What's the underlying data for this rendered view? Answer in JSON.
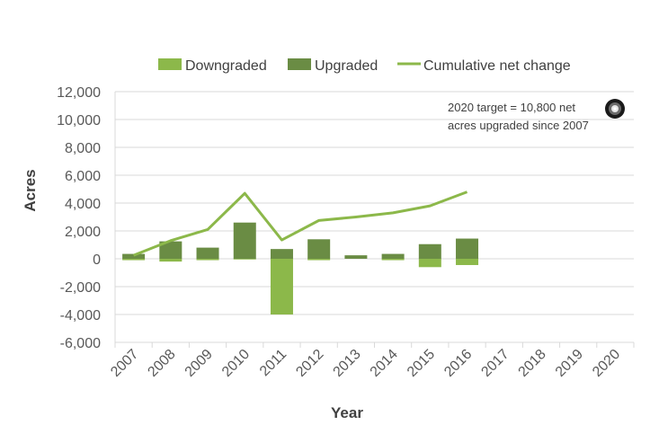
{
  "chart_data": {
    "type": "bar",
    "categories": [
      "2007",
      "2008",
      "2009",
      "2010",
      "2011",
      "2012",
      "2013",
      "2014",
      "2015",
      "2016",
      "2017",
      "2018",
      "2019",
      "2020"
    ],
    "series": [
      {
        "name": "Downgraded",
        "kind": "bar",
        "color": "#8cb84a",
        "values": [
          -100,
          -200,
          -100,
          -50,
          -4000,
          -100,
          0,
          -100,
          -600,
          -450,
          null,
          null,
          null,
          null
        ]
      },
      {
        "name": "Upgraded",
        "kind": "bar",
        "color": "#6a8c44",
        "values": [
          350,
          1250,
          800,
          2600,
          700,
          1400,
          250,
          350,
          1050,
          1450,
          null,
          null,
          null,
          null
        ]
      },
      {
        "name": "Cumulative net change",
        "kind": "line",
        "color": "#8cb84a",
        "values": [
          250,
          1300,
          2100,
          4700,
          1350,
          2750,
          3000,
          3300,
          3800,
          4800,
          null,
          null,
          null,
          null
        ]
      }
    ],
    "xlabel": "Year",
    "ylabel": "Acres",
    "ylim": [
      -6000,
      12000
    ],
    "yticks": [
      12000,
      10000,
      8000,
      6000,
      4000,
      2000,
      0,
      -2000,
      -4000,
      -6000
    ],
    "ytick_labels": [
      "12,000",
      "10,000",
      "8,000",
      "6,000",
      "4,000",
      "2,000",
      "0",
      "-2,000",
      "-4,000",
      "-6,000"
    ],
    "grid": true,
    "legend_position": "top",
    "annotation": {
      "lines": [
        "2020 target = 10,800 net",
        "acres upgraded since 2007"
      ],
      "icon": "target-dot-icon"
    }
  }
}
